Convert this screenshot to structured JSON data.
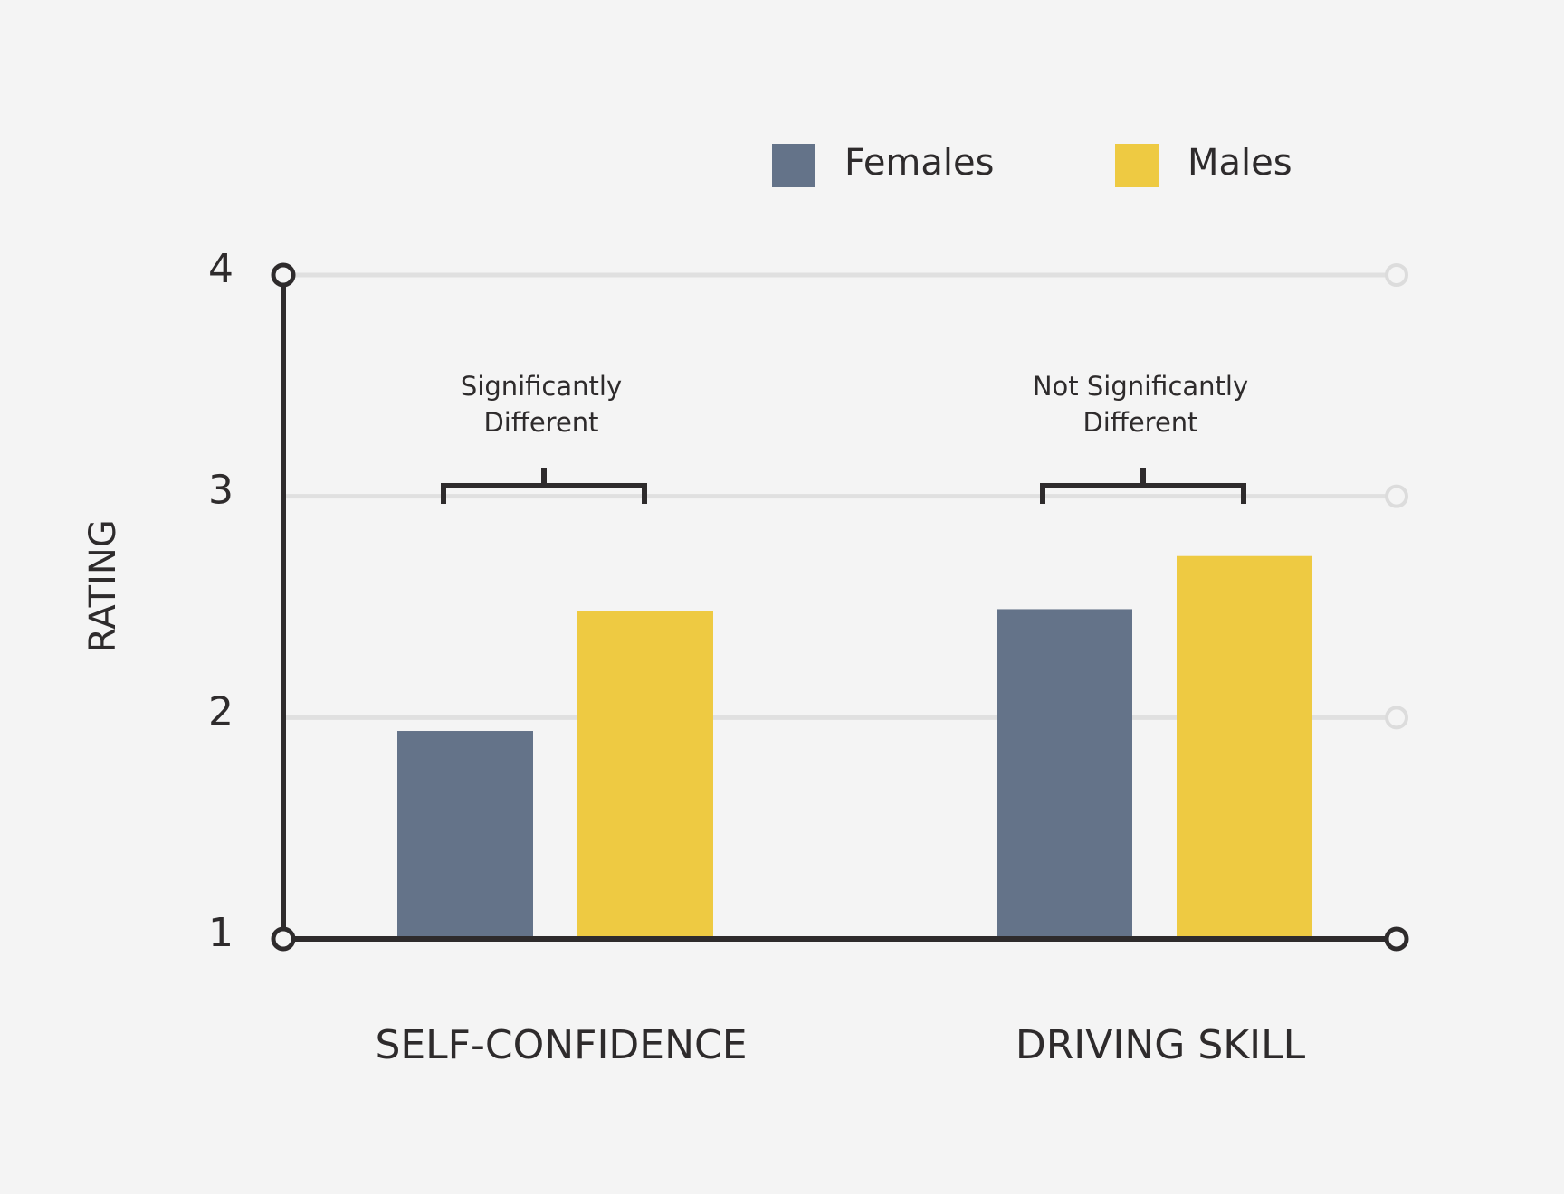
{
  "chart_data": {
    "type": "bar",
    "y_label": "RATING",
    "categories": [
      "SELF-CONFIDENCE",
      "DRIVING SKILL"
    ],
    "series": [
      {
        "name": "Females",
        "color": "#647389",
        "values": [
          1.94,
          2.49
        ]
      },
      {
        "name": "Males",
        "color": "#eeca42",
        "values": [
          2.48,
          2.73
        ]
      }
    ],
    "ylim": [
      1,
      4
    ],
    "yticks": [
      1,
      2,
      3,
      4
    ],
    "grid": true,
    "annotations": [
      {
        "lines": [
          "Significantly",
          "Different"
        ]
      },
      {
        "lines": [
          "Not Significantly",
          "Different"
        ]
      }
    ]
  }
}
